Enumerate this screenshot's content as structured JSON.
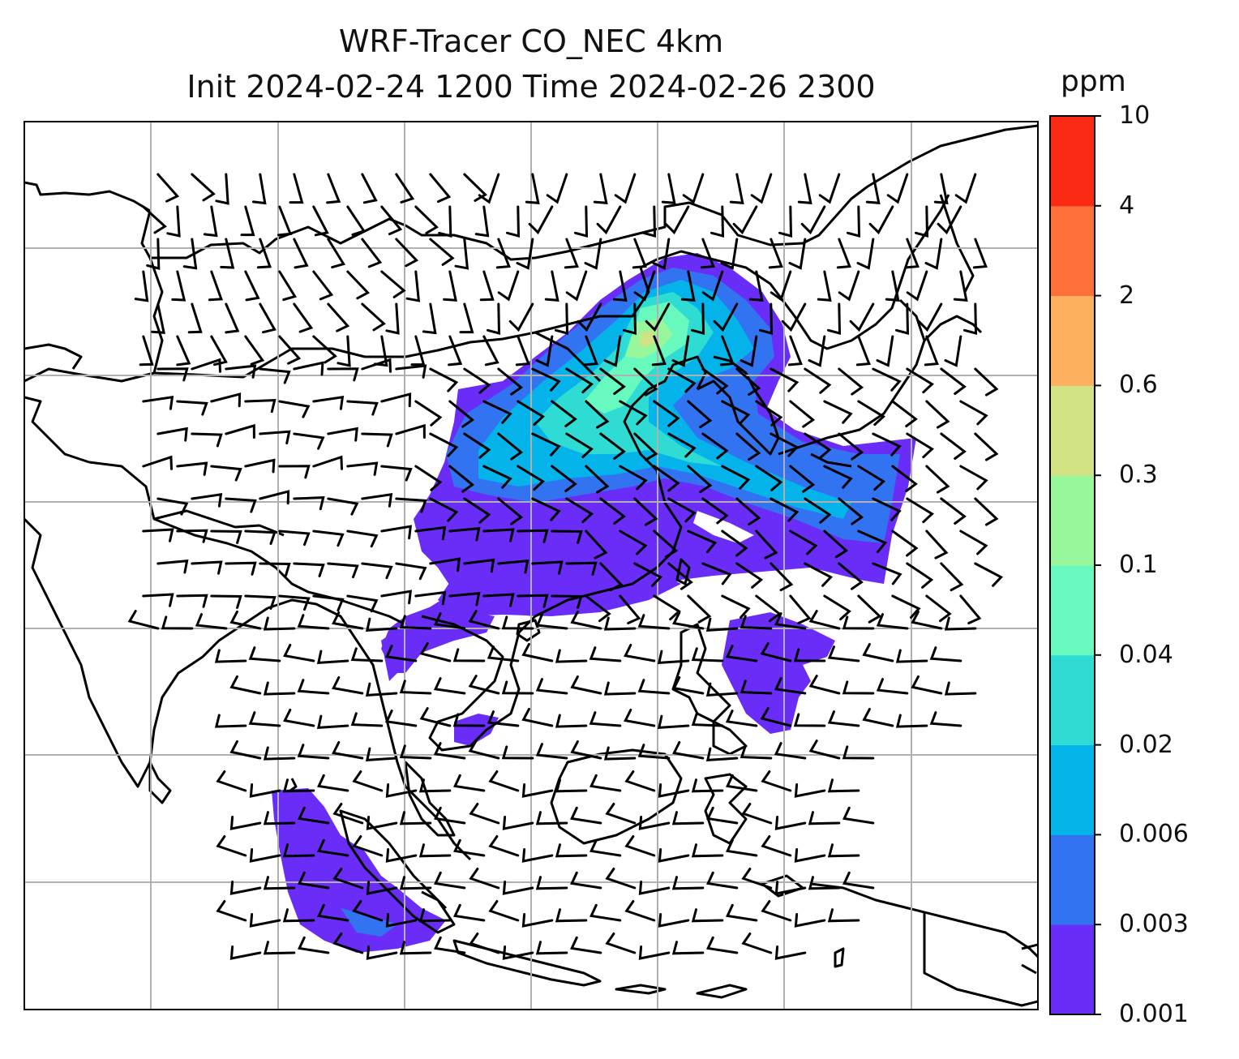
{
  "title": {
    "line1": "WRF-Tracer CO_NEC 4km",
    "line2": "Init 2024-02-24 1200 Time 2024-02-26 2300"
  },
  "colorbar": {
    "unit": "ppm",
    "ticks": [
      "0.001",
      "0.003",
      "0.006",
      "0.02",
      "0.04",
      "0.1",
      "0.3",
      "0.6",
      "2",
      "4",
      "10"
    ],
    "colors": [
      "#6a2cf7",
      "#3273f2",
      "#03b3ea",
      "#2fdcd4",
      "#67f9bd",
      "#98f79a",
      "#d0e283",
      "#fcb060",
      "#fd7039",
      "#fb2a15"
    ]
  },
  "map": {
    "grid": "on",
    "variable": "CO tracer concentration",
    "overlay": "wind-barbs"
  }
}
